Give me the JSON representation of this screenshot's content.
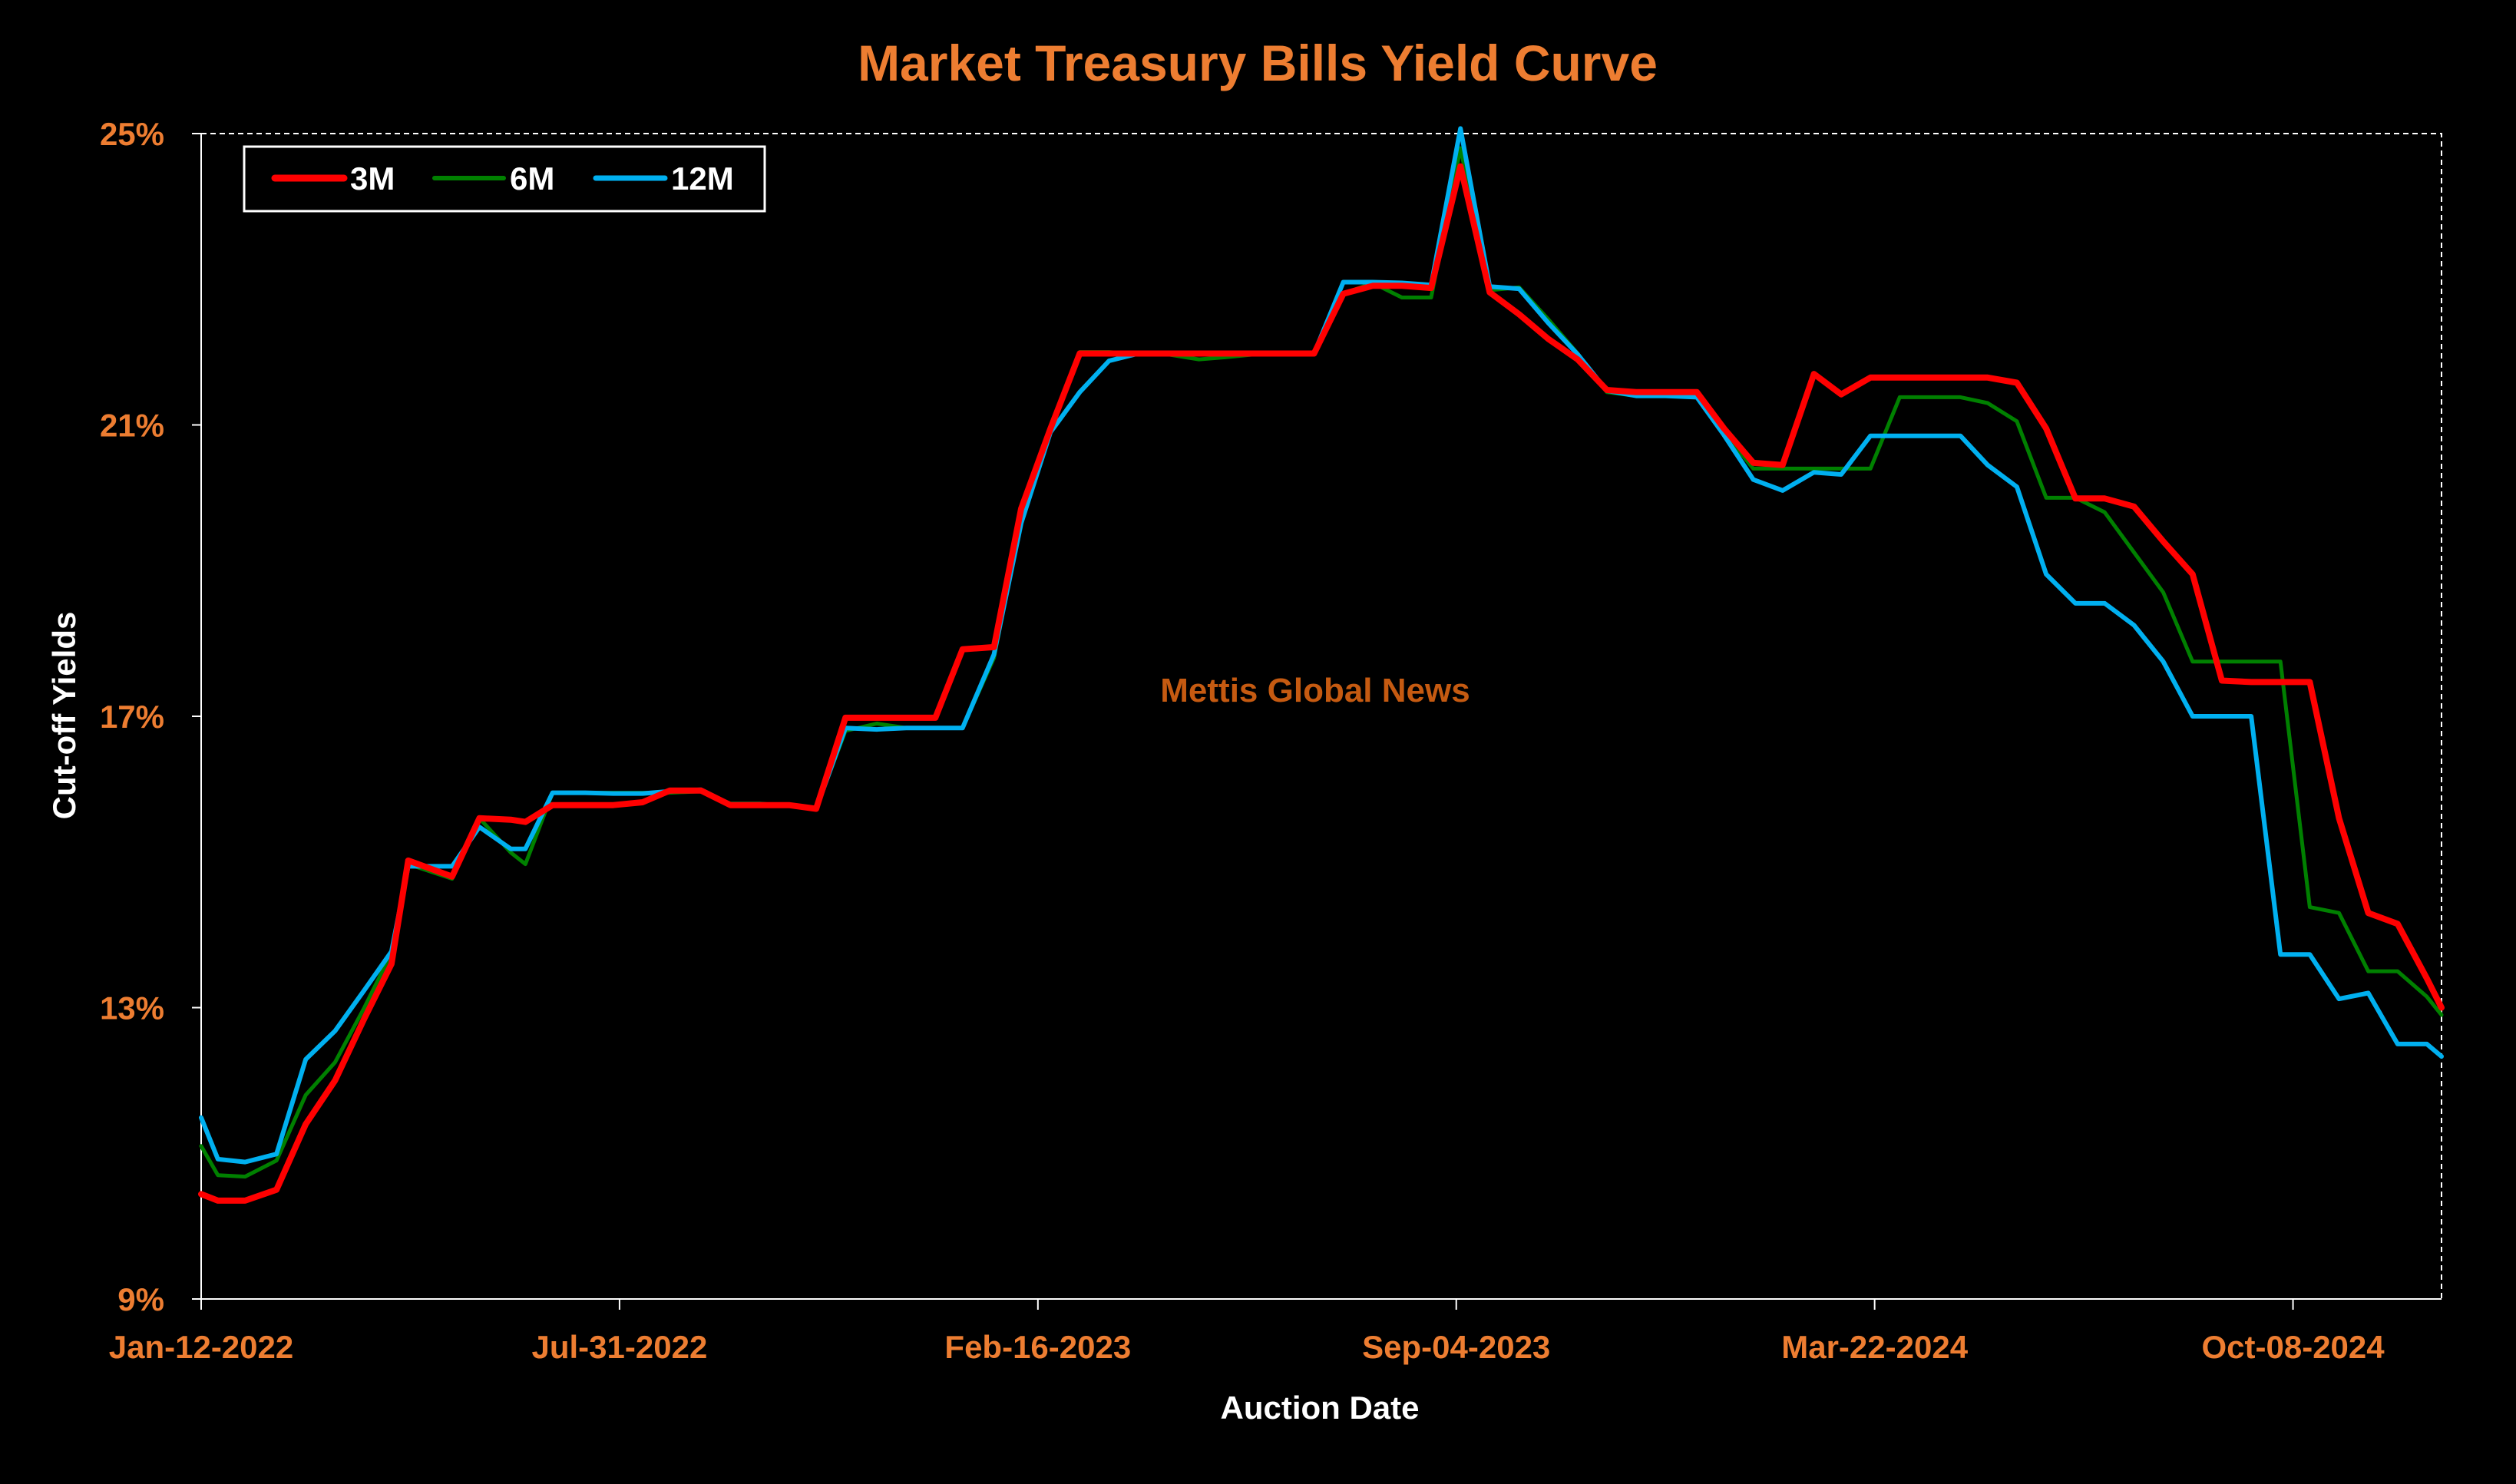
{
  "chart_data": {
    "type": "line",
    "title": "Market Treasury Bills Yield Curve",
    "xlabel": "Auction Date",
    "ylabel": "Cut-off Yields",
    "watermark": "Mettis Global News",
    "ylim": [
      9,
      25
    ],
    "yticks": [
      9,
      13,
      17,
      21,
      25
    ],
    "ytick_labels": [
      "9%",
      "13%",
      "17%",
      "21%",
      "25%"
    ],
    "xlim": [
      "2022-01-12",
      "2024-12-18"
    ],
    "xticks": [
      "2022-01-12",
      "2022-07-31",
      "2023-02-16",
      "2023-09-04",
      "2024-03-22",
      "2024-10-08"
    ],
    "xtick_labels": [
      "Jan-12-2022",
      "Jul-31-2022",
      "Feb-16-2023",
      "Sep-04-2023",
      "Mar-22-2024",
      "Oct-08-2024"
    ],
    "legend_position": "top-left",
    "grid": false,
    "colors": {
      "background": "#000000",
      "title": "#ED7D31",
      "ticks": "#ED7D31",
      "axis_labels": "#FFFFFF",
      "watermark": "#C55A11",
      "plot_border": "#FFFFFF"
    },
    "series": [
      {
        "name": "3M",
        "color": "#FF0000",
        "width": 8,
        "points": [
          [
            "2022-01-12",
            10.44
          ],
          [
            "2022-01-20",
            10.35
          ],
          [
            "2022-02-02",
            10.35
          ],
          [
            "2022-02-17",
            10.5
          ],
          [
            "2022-03-03",
            11.4
          ],
          [
            "2022-03-17",
            12.0
          ],
          [
            "2022-03-31",
            12.85
          ],
          [
            "2022-04-13",
            13.6
          ],
          [
            "2022-04-21",
            15.02
          ],
          [
            "2022-05-12",
            14.8
          ],
          [
            "2022-05-25",
            15.6
          ],
          [
            "2022-06-09",
            15.58
          ],
          [
            "2022-06-16",
            15.55
          ],
          [
            "2022-06-29",
            15.78
          ],
          [
            "2022-07-14",
            15.78
          ],
          [
            "2022-07-28",
            15.78
          ],
          [
            "2022-08-11",
            15.82
          ],
          [
            "2022-08-24",
            15.98
          ],
          [
            "2022-09-08",
            15.98
          ],
          [
            "2022-09-22",
            15.78
          ],
          [
            "2022-10-06",
            15.78
          ],
          [
            "2022-10-20",
            15.78
          ],
          [
            "2022-11-02",
            15.73
          ],
          [
            "2022-11-16",
            16.98
          ],
          [
            "2022-12-01",
            16.98
          ],
          [
            "2022-12-15",
            16.98
          ],
          [
            "2022-12-29",
            16.98
          ],
          [
            "2023-01-11",
            17.92
          ],
          [
            "2023-01-26",
            17.95
          ],
          [
            "2023-02-08",
            19.85
          ],
          [
            "2023-02-22",
            20.95
          ],
          [
            "2023-03-08",
            21.98
          ],
          [
            "2023-03-22",
            21.98
          ],
          [
            "2023-04-05",
            21.98
          ],
          [
            "2023-04-19",
            21.98
          ],
          [
            "2023-05-04",
            21.98
          ],
          [
            "2023-05-17",
            21.98
          ],
          [
            "2023-05-31",
            21.98
          ],
          [
            "2023-06-14",
            21.98
          ],
          [
            "2023-06-28",
            21.98
          ],
          [
            "2023-07-12",
            22.8
          ],
          [
            "2023-07-26",
            22.91
          ],
          [
            "2023-08-09",
            22.91
          ],
          [
            "2023-08-23",
            22.88
          ],
          [
            "2023-09-06",
            24.55
          ],
          [
            "2023-09-20",
            22.82
          ],
          [
            "2023-10-04",
            22.52
          ],
          [
            "2023-10-18",
            22.18
          ],
          [
            "2023-11-01",
            21.9
          ],
          [
            "2023-11-15",
            21.48
          ],
          [
            "2023-11-29",
            21.45
          ],
          [
            "2023-12-13",
            21.45
          ],
          [
            "2023-12-28",
            21.45
          ],
          [
            "2024-01-10",
            20.95
          ],
          [
            "2024-01-24",
            20.48
          ],
          [
            "2024-02-07",
            20.45
          ],
          [
            "2024-02-22",
            21.7
          ],
          [
            "2024-03-06",
            21.42
          ],
          [
            "2024-03-20",
            21.65
          ],
          [
            "2024-04-03",
            21.65
          ],
          [
            "2024-04-18",
            21.65
          ],
          [
            "2024-05-02",
            21.65
          ],
          [
            "2024-05-15",
            21.65
          ],
          [
            "2024-05-29",
            21.58
          ],
          [
            "2024-06-12",
            20.95
          ],
          [
            "2024-06-26",
            19.99
          ],
          [
            "2024-07-10",
            19.99
          ],
          [
            "2024-07-24",
            19.88
          ],
          [
            "2024-08-07",
            19.4
          ],
          [
            "2024-08-21",
            18.95
          ],
          [
            "2024-09-04",
            17.49
          ],
          [
            "2024-09-18",
            17.47
          ],
          [
            "2024-10-02",
            17.47
          ],
          [
            "2024-10-16",
            17.47
          ],
          [
            "2024-10-30",
            15.6
          ],
          [
            "2024-11-13",
            14.3
          ],
          [
            "2024-11-27",
            14.15
          ],
          [
            "2024-12-11",
            13.4
          ],
          [
            "2024-12-18",
            13.0
          ]
        ]
      },
      {
        "name": "6M",
        "color": "#008000",
        "width": 5,
        "points": [
          [
            "2022-01-12",
            11.1
          ],
          [
            "2022-01-20",
            10.7
          ],
          [
            "2022-02-02",
            10.68
          ],
          [
            "2022-02-17",
            10.9
          ],
          [
            "2022-03-03",
            11.8
          ],
          [
            "2022-03-17",
            12.25
          ],
          [
            "2022-03-31",
            13.0
          ],
          [
            "2022-04-13",
            13.75
          ],
          [
            "2022-04-21",
            14.97
          ],
          [
            "2022-05-12",
            14.77
          ],
          [
            "2022-05-25",
            15.6
          ],
          [
            "2022-06-09",
            15.13
          ],
          [
            "2022-06-16",
            14.97
          ],
          [
            "2022-06-29",
            15.95
          ],
          [
            "2022-07-14",
            15.95
          ],
          [
            "2022-07-28",
            15.95
          ],
          [
            "2022-08-11",
            15.95
          ],
          [
            "2022-08-24",
            15.95
          ],
          [
            "2022-09-08",
            15.97
          ],
          [
            "2022-09-22",
            15.8
          ],
          [
            "2022-10-06",
            15.8
          ],
          [
            "2022-10-20",
            15.77
          ],
          [
            "2022-11-02",
            15.73
          ],
          [
            "2022-11-16",
            16.8
          ],
          [
            "2022-12-01",
            16.9
          ],
          [
            "2022-12-15",
            16.84
          ],
          [
            "2022-12-29",
            16.84
          ],
          [
            "2023-01-11",
            16.84
          ],
          [
            "2023-01-26",
            17.8
          ],
          [
            "2023-02-08",
            19.7
          ],
          [
            "2023-02-22",
            20.9
          ],
          [
            "2023-03-08",
            22.0
          ],
          [
            "2023-03-22",
            22.0
          ],
          [
            "2023-04-05",
            21.97
          ],
          [
            "2023-04-19",
            21.97
          ],
          [
            "2023-05-04",
            21.9
          ],
          [
            "2023-05-17",
            21.93
          ],
          [
            "2023-05-31",
            21.97
          ],
          [
            "2023-06-14",
            21.97
          ],
          [
            "2023-06-28",
            21.97
          ],
          [
            "2023-07-12",
            22.8
          ],
          [
            "2023-07-26",
            22.95
          ],
          [
            "2023-08-09",
            22.75
          ],
          [
            "2023-08-23",
            22.75
          ],
          [
            "2023-09-06",
            24.8
          ],
          [
            "2023-09-20",
            22.85
          ],
          [
            "2023-10-04",
            22.89
          ],
          [
            "2023-10-18",
            22.45
          ],
          [
            "2023-11-01",
            21.98
          ],
          [
            "2023-11-15",
            21.45
          ],
          [
            "2023-11-29",
            21.4
          ],
          [
            "2023-12-13",
            21.4
          ],
          [
            "2023-12-28",
            21.4
          ],
          [
            "2024-01-10",
            20.9
          ],
          [
            "2024-01-24",
            20.4
          ],
          [
            "2024-02-07",
            20.4
          ],
          [
            "2024-02-22",
            20.4
          ],
          [
            "2024-03-06",
            20.4
          ],
          [
            "2024-03-20",
            20.4
          ],
          [
            "2024-04-03",
            21.38
          ],
          [
            "2024-04-18",
            21.38
          ],
          [
            "2024-05-02",
            21.38
          ],
          [
            "2024-05-15",
            21.3
          ],
          [
            "2024-05-29",
            21.05
          ],
          [
            "2024-06-12",
            20.0
          ],
          [
            "2024-06-26",
            20.0
          ],
          [
            "2024-07-10",
            19.8
          ],
          [
            "2024-07-24",
            19.25
          ],
          [
            "2024-08-07",
            18.7
          ],
          [
            "2024-08-21",
            17.75
          ],
          [
            "2024-09-04",
            17.75
          ],
          [
            "2024-09-18",
            17.75
          ],
          [
            "2024-10-02",
            17.75
          ],
          [
            "2024-10-16",
            14.38
          ],
          [
            "2024-10-30",
            14.3
          ],
          [
            "2024-11-13",
            13.5
          ],
          [
            "2024-11-27",
            13.5
          ],
          [
            "2024-12-11",
            13.15
          ],
          [
            "2024-12-18",
            12.9
          ]
        ]
      },
      {
        "name": "12M",
        "color": "#00B0F0",
        "width": 6,
        "points": [
          [
            "2022-01-12",
            11.49
          ],
          [
            "2022-01-20",
            10.92
          ],
          [
            "2022-02-02",
            10.88
          ],
          [
            "2022-02-17",
            10.99
          ],
          [
            "2022-03-03",
            12.29
          ],
          [
            "2022-03-17",
            12.68
          ],
          [
            "2022-03-31",
            13.24
          ],
          [
            "2022-04-13",
            13.77
          ],
          [
            "2022-04-21",
            14.94
          ],
          [
            "2022-05-12",
            14.94
          ],
          [
            "2022-05-25",
            15.48
          ],
          [
            "2022-06-09",
            15.18
          ],
          [
            "2022-06-16",
            15.18
          ],
          [
            "2022-06-29",
            15.95
          ],
          [
            "2022-07-14",
            15.95
          ],
          [
            "2022-07-28",
            15.94
          ],
          [
            "2022-08-11",
            15.94
          ],
          [
            "2022-08-24",
            15.97
          ],
          [
            "2022-09-08",
            15.99
          ],
          [
            "2022-09-22",
            15.79
          ],
          [
            "2022-10-06",
            15.79
          ],
          [
            "2022-10-20",
            15.78
          ],
          [
            "2022-11-02",
            15.73
          ],
          [
            "2022-11-16",
            16.84
          ],
          [
            "2022-12-01",
            16.82
          ],
          [
            "2022-12-15",
            16.84
          ],
          [
            "2022-12-29",
            16.84
          ],
          [
            "2023-01-11",
            16.84
          ],
          [
            "2023-01-26",
            17.85
          ],
          [
            "2023-02-08",
            19.65
          ],
          [
            "2023-02-22",
            20.9
          ],
          [
            "2023-03-08",
            21.45
          ],
          [
            "2023-03-22",
            21.88
          ],
          [
            "2023-04-05",
            21.98
          ],
          [
            "2023-04-19",
            21.98
          ],
          [
            "2023-05-04",
            21.98
          ],
          [
            "2023-05-17",
            21.98
          ],
          [
            "2023-05-31",
            21.98
          ],
          [
            "2023-06-14",
            21.98
          ],
          [
            "2023-06-28",
            21.98
          ],
          [
            "2023-07-12",
            22.96
          ],
          [
            "2023-07-26",
            22.96
          ],
          [
            "2023-08-09",
            22.95
          ],
          [
            "2023-08-23",
            22.92
          ],
          [
            "2023-09-06",
            25.07
          ],
          [
            "2023-09-20",
            22.9
          ],
          [
            "2023-10-04",
            22.87
          ],
          [
            "2023-10-18",
            22.4
          ],
          [
            "2023-11-01",
            21.97
          ],
          [
            "2023-11-15",
            21.47
          ],
          [
            "2023-11-29",
            21.4
          ],
          [
            "2023-12-13",
            21.4
          ],
          [
            "2023-12-28",
            21.38
          ],
          [
            "2024-01-10",
            20.86
          ],
          [
            "2024-01-24",
            20.25
          ],
          [
            "2024-02-07",
            20.1
          ],
          [
            "2024-02-22",
            20.35
          ],
          [
            "2024-03-06",
            20.32
          ],
          [
            "2024-03-20",
            20.85
          ],
          [
            "2024-04-03",
            20.85
          ],
          [
            "2024-04-18",
            20.85
          ],
          [
            "2024-05-02",
            20.85
          ],
          [
            "2024-05-15",
            20.45
          ],
          [
            "2024-05-29",
            20.15
          ],
          [
            "2024-06-12",
            18.95
          ],
          [
            "2024-06-26",
            18.55
          ],
          [
            "2024-07-10",
            18.55
          ],
          [
            "2024-07-24",
            18.25
          ],
          [
            "2024-08-07",
            17.75
          ],
          [
            "2024-08-21",
            17.0
          ],
          [
            "2024-09-04",
            17.0
          ],
          [
            "2024-09-18",
            17.0
          ],
          [
            "2024-10-02",
            13.73
          ],
          [
            "2024-10-16",
            13.73
          ],
          [
            "2024-10-30",
            13.12
          ],
          [
            "2024-11-13",
            13.2
          ],
          [
            "2024-11-27",
            12.5
          ],
          [
            "2024-12-11",
            12.5
          ],
          [
            "2024-12-18",
            12.33
          ]
        ]
      }
    ]
  }
}
